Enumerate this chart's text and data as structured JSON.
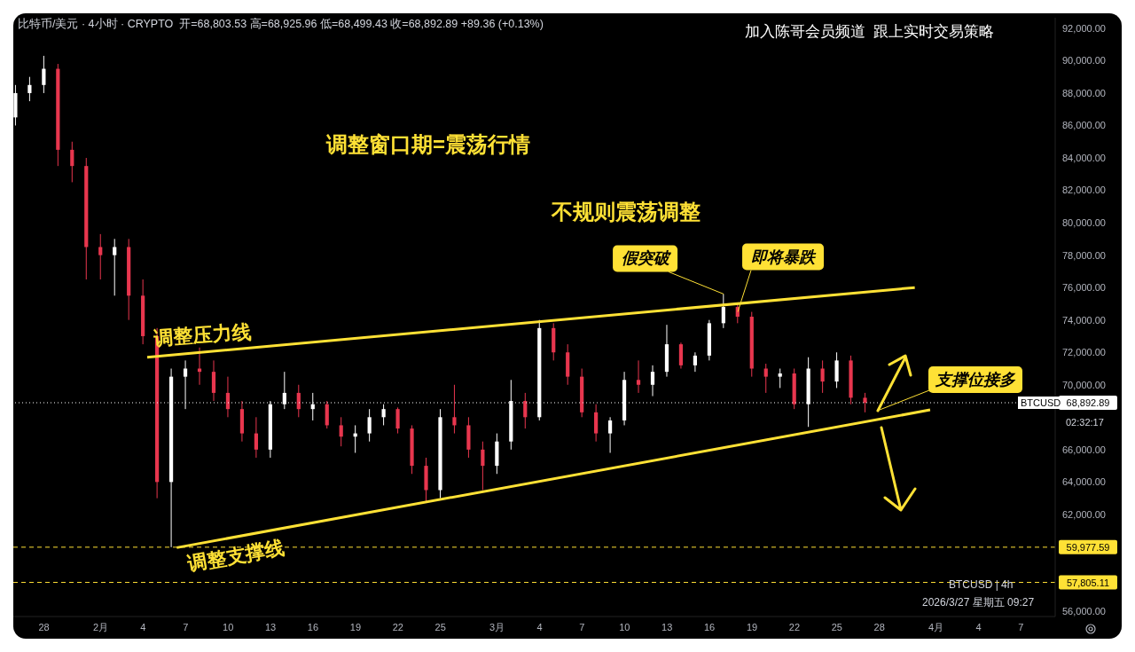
{
  "chart_data": {
    "type": "candlestick",
    "title": "比特币/美元 · 4小时 · CRYPTO  开=68,803.53 高=68,925.96 低=68,499.43 收=68,892.89 +89.36 (+0.13%)",
    "subtitle": "加入陈哥会员频道  跟上实时交易策略",
    "x": [
      "2026-01-26",
      "2026-01-27",
      "2026-01-28",
      "2026-01-29",
      "2026-01-30",
      "2026-01-31",
      "2026-02-01",
      "2026-02-02",
      "2026-02-03",
      "2026-02-04",
      "2026-02-05",
      "2026-02-06",
      "2026-02-07",
      "2026-02-08",
      "2026-02-09",
      "2026-02-10",
      "2026-02-11",
      "2026-02-12",
      "2026-02-13",
      "2026-02-14",
      "2026-02-15",
      "2026-02-16",
      "2026-02-17",
      "2026-02-18",
      "2026-02-19",
      "2026-02-20",
      "2026-02-21",
      "2026-02-22",
      "2026-02-23",
      "2026-02-24",
      "2026-02-25",
      "2026-02-26",
      "2026-02-27",
      "2026-02-28",
      "2026-03-01",
      "2026-03-02",
      "2026-03-03",
      "2026-03-04",
      "2026-03-05",
      "2026-03-06",
      "2026-03-07",
      "2026-03-08",
      "2026-03-09",
      "2026-03-10",
      "2026-03-11",
      "2026-03-12",
      "2026-03-13",
      "2026-03-14",
      "2026-03-15",
      "2026-03-16",
      "2026-03-17",
      "2026-03-18",
      "2026-03-19",
      "2026-03-20",
      "2026-03-21",
      "2026-03-22",
      "2026-03-23",
      "2026-03-24",
      "2026-03-25",
      "2026-03-26",
      "2026-03-27"
    ],
    "ohlc": [
      [
        86500,
        88500,
        86000,
        88000
      ],
      [
        88000,
        89000,
        87500,
        88500
      ],
      [
        88500,
        90300,
        88000,
        89500
      ],
      [
        89500,
        89800,
        83500,
        84500
      ],
      [
        84500,
        85000,
        82500,
        83500
      ],
      [
        83500,
        84000,
        76500,
        78500
      ],
      [
        78500,
        79300,
        76500,
        78000
      ],
      [
        78000,
        79000,
        75500,
        78500
      ],
      [
        78500,
        79000,
        74000,
        75500
      ],
      [
        75500,
        76500,
        72500,
        73000
      ],
      [
        73000,
        73500,
        63000,
        64000
      ],
      [
        64000,
        71000,
        59977.59,
        70500
      ],
      [
        70500,
        71500,
        68500,
        71000
      ],
      [
        71000,
        72300,
        70000,
        70800
      ],
      [
        70800,
        71500,
        69000,
        69500
      ],
      [
        69500,
        70500,
        68000,
        68500
      ],
      [
        68500,
        69000,
        66500,
        67000
      ],
      [
        67000,
        68000,
        65500,
        66000
      ],
      [
        66000,
        69000,
        65500,
        68800
      ],
      [
        68800,
        70800,
        68500,
        69500
      ],
      [
        69500,
        70000,
        68000,
        68500
      ],
      [
        68500,
        69500,
        67800,
        68800
      ],
      [
        68800,
        69000,
        67300,
        67500
      ],
      [
        67500,
        68000,
        66200,
        66800
      ],
      [
        66800,
        67500,
        65800,
        67000
      ],
      [
        67000,
        68500,
        66500,
        68000
      ],
      [
        68000,
        68800,
        67500,
        68500
      ],
      [
        68500,
        68600,
        67000,
        67300
      ],
      [
        67300,
        67500,
        64500,
        65000
      ],
      [
        65000,
        65500,
        62800,
        63500
      ],
      [
        63500,
        68500,
        63000,
        68000
      ],
      [
        68000,
        70000,
        67000,
        67500
      ],
      [
        67500,
        68000,
        65500,
        66000
      ],
      [
        66000,
        66500,
        63500,
        65000
      ],
      [
        65000,
        67000,
        64500,
        66500
      ],
      [
        66500,
        70300,
        66000,
        69000
      ],
      [
        69000,
        69500,
        67300,
        68000
      ],
      [
        68000,
        74000,
        67800,
        73500
      ],
      [
        73500,
        73800,
        71500,
        72000
      ],
      [
        72000,
        72500,
        70000,
        70500
      ],
      [
        70500,
        71000,
        68000,
        68300
      ],
      [
        68300,
        68800,
        66500,
        67000
      ],
      [
        67000,
        68000,
        65800,
        67800
      ],
      [
        67800,
        70800,
        67500,
        70300
      ],
      [
        70300,
        71500,
        69500,
        70000
      ],
      [
        70000,
        71200,
        69300,
        70800
      ],
      [
        70800,
        73700,
        70500,
        72500
      ],
      [
        72500,
        72600,
        71000,
        71200
      ],
      [
        71200,
        72000,
        70800,
        71800
      ],
      [
        71800,
        74000,
        71500,
        73800
      ],
      [
        73800,
        75600,
        73500,
        74800
      ],
      [
        74800,
        75000,
        73800,
        74200
      ],
      [
        74200,
        74500,
        70500,
        71000
      ],
      [
        71000,
        71300,
        69500,
        70500
      ],
      [
        70500,
        71000,
        69800,
        70700
      ],
      [
        70700,
        71000,
        68500,
        68800
      ],
      [
        68800,
        71700,
        67400,
        71000
      ],
      [
        71000,
        71500,
        69500,
        70200
      ],
      [
        70200,
        72000,
        69800,
        71500
      ],
      [
        71500,
        71800,
        68800,
        69200
      ],
      [
        69200,
        69500,
        68300,
        68892.89
      ]
    ],
    "colors": [
      "#ffffff",
      "#ffffff",
      "#ffffff",
      "#e8364e",
      "#e8364e",
      "#e8364e",
      "#e8364e",
      "#ffffff",
      "#e8364e",
      "#e8364e",
      "#e8364e",
      "#ffffff",
      "#ffffff",
      "#e8364e",
      "#e8364e",
      "#e8364e",
      "#e8364e",
      "#e8364e",
      "#ffffff",
      "#ffffff",
      "#e8364e",
      "#ffffff",
      "#e8364e",
      "#e8364e",
      "#ffffff",
      "#ffffff",
      "#ffffff",
      "#e8364e",
      "#e8364e",
      "#e8364e",
      "#ffffff",
      "#e8364e",
      "#e8364e",
      "#e8364e",
      "#ffffff",
      "#ffffff",
      "#e8364e",
      "#ffffff",
      "#e8364e",
      "#e8364e",
      "#e8364e",
      "#e8364e",
      "#ffffff",
      "#ffffff",
      "#e8364e",
      "#ffffff",
      "#ffffff",
      "#e8364e",
      "#ffffff",
      "#ffffff",
      "#ffffff",
      "#e8364e",
      "#e8364e",
      "#e8364e",
      "#ffffff",
      "#e8364e",
      "#ffffff",
      "#e8364e",
      "#ffffff",
      "#e8364e",
      "#e8364e"
    ],
    "series": [
      {
        "type": "line",
        "name": "调整压力线",
        "color": "#ffe135",
        "x": [
          "2026-02-04T07:00",
          "2026-03-30T12:00"
        ],
        "values": [
          71700,
          76000
        ]
      },
      {
        "type": "line",
        "name": "调整支撑线",
        "color": "#ffe135",
        "x": [
          "2026-02-06T09:00",
          "2026-03-31T14:00"
        ],
        "values": [
          59950,
          68450
        ]
      }
    ],
    "xlim": [
      "2026-01-25T20:00",
      "2026-04-09T10:00"
    ],
    "xticks": [
      {
        "value": "2026-01-28",
        "label": "28"
      },
      {
        "value": "2026-02-01",
        "label": "2月"
      },
      {
        "value": "2026-02-04",
        "label": "4"
      },
      {
        "value": "2026-02-07",
        "label": "7"
      },
      {
        "value": "2026-02-10",
        "label": "10"
      },
      {
        "value": "2026-02-13",
        "label": "13"
      },
      {
        "value": "2026-02-16",
        "label": "16"
      },
      {
        "value": "2026-02-19",
        "label": "19"
      },
      {
        "value": "2026-02-22",
        "label": "22"
      },
      {
        "value": "2026-02-25",
        "label": "25"
      },
      {
        "value": "2026-03-01",
        "label": "3月"
      },
      {
        "value": "2026-03-04",
        "label": "4"
      },
      {
        "value": "2026-03-07",
        "label": "7"
      },
      {
        "value": "2026-03-10",
        "label": "10"
      },
      {
        "value": "2026-03-13",
        "label": "13"
      },
      {
        "value": "2026-03-16",
        "label": "16"
      },
      {
        "value": "2026-03-19",
        "label": "19"
      },
      {
        "value": "2026-03-22",
        "label": "22"
      },
      {
        "value": "2026-03-25",
        "label": "25"
      },
      {
        "value": "2026-03-28",
        "label": "28"
      },
      {
        "value": "2026-04-01",
        "label": "4月"
      },
      {
        "value": "2026-04-04",
        "label": "4"
      },
      {
        "value": "2026-04-07",
        "label": "7"
      }
    ],
    "ylim": [
      55700,
      92650
    ],
    "yticks": [
      {
        "value": 56000,
        "label": "56,000.00"
      },
      {
        "value": 62000,
        "label": "62,000.00"
      },
      {
        "value": 64000,
        "label": "64,000.00"
      },
      {
        "value": 66000,
        "label": "66,000.00"
      },
      {
        "value": 70000,
        "label": "70,000.00"
      },
      {
        "value": 72000,
        "label": "72,000.00"
      },
      {
        "value": 74000,
        "label": "74,000.00"
      },
      {
        "value": 76000,
        "label": "76,000.00"
      },
      {
        "value": 78000,
        "label": "78,000.00"
      },
      {
        "value": 80000,
        "label": "80,000.00"
      },
      {
        "value": 82000,
        "label": "82,000.00"
      },
      {
        "value": 84000,
        "label": "84,000.00"
      },
      {
        "value": 86000,
        "label": "86,000.00"
      },
      {
        "value": 88000,
        "label": "88,000.00"
      },
      {
        "value": 90000,
        "label": "90,000.00"
      },
      {
        "value": 92000,
        "label": "92,000.00"
      }
    ],
    "ref_lines": [
      {
        "axis": "y",
        "value": 68892.89,
        "label": "68,892.89",
        "color": "#ffffff",
        "line_style": "dotted"
      },
      {
        "axis": "y",
        "value": 59977.59,
        "label": "59,977.59",
        "color": "#ffe135",
        "line_style": "dashed"
      },
      {
        "axis": "y",
        "value": 57805.11,
        "label": "57,805.11",
        "color": "#ffe135",
        "line_style": "dashed"
      }
    ],
    "annotations": [
      "调整窗口期=震荡行情",
      "不规则震荡调整",
      {
        "text": "假突破",
        "x": "2026-03-17",
        "y": 75600
      },
      {
        "text": "即将暴跌",
        "x": "2026-03-18",
        "y": 74500
      },
      "支撑位接多",
      "BTCUSD",
      "02:32:17",
      "BTCUSD | 4h",
      "2026/3/27 星期五 09:27"
    ]
  }
}
